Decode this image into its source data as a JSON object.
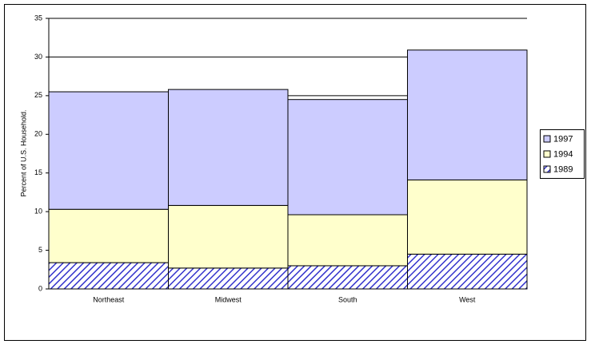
{
  "chart_data": {
    "type": "stacked_bar",
    "y_label": "Percent of U.S. Household.",
    "categories": [
      "Northeast",
      "Midwest",
      "South",
      "West"
    ],
    "series": [
      {
        "name": "1989",
        "color": "#3333cc",
        "hatch": true,
        "values": [
          3.4,
          2.7,
          3.0,
          4.5
        ]
      },
      {
        "name": "1994",
        "color": "#ffffcc",
        "values": [
          6.9,
          8.1,
          6.6,
          9.6
        ]
      },
      {
        "name": "1997",
        "color": "#ccccff",
        "values": [
          15.2,
          15.0,
          14.9,
          16.8
        ]
      }
    ],
    "ylim": [
      0,
      35
    ],
    "yticks": [
      0,
      5,
      10,
      15,
      20,
      25,
      30,
      35
    ],
    "grid": true,
    "legend": "right"
  }
}
